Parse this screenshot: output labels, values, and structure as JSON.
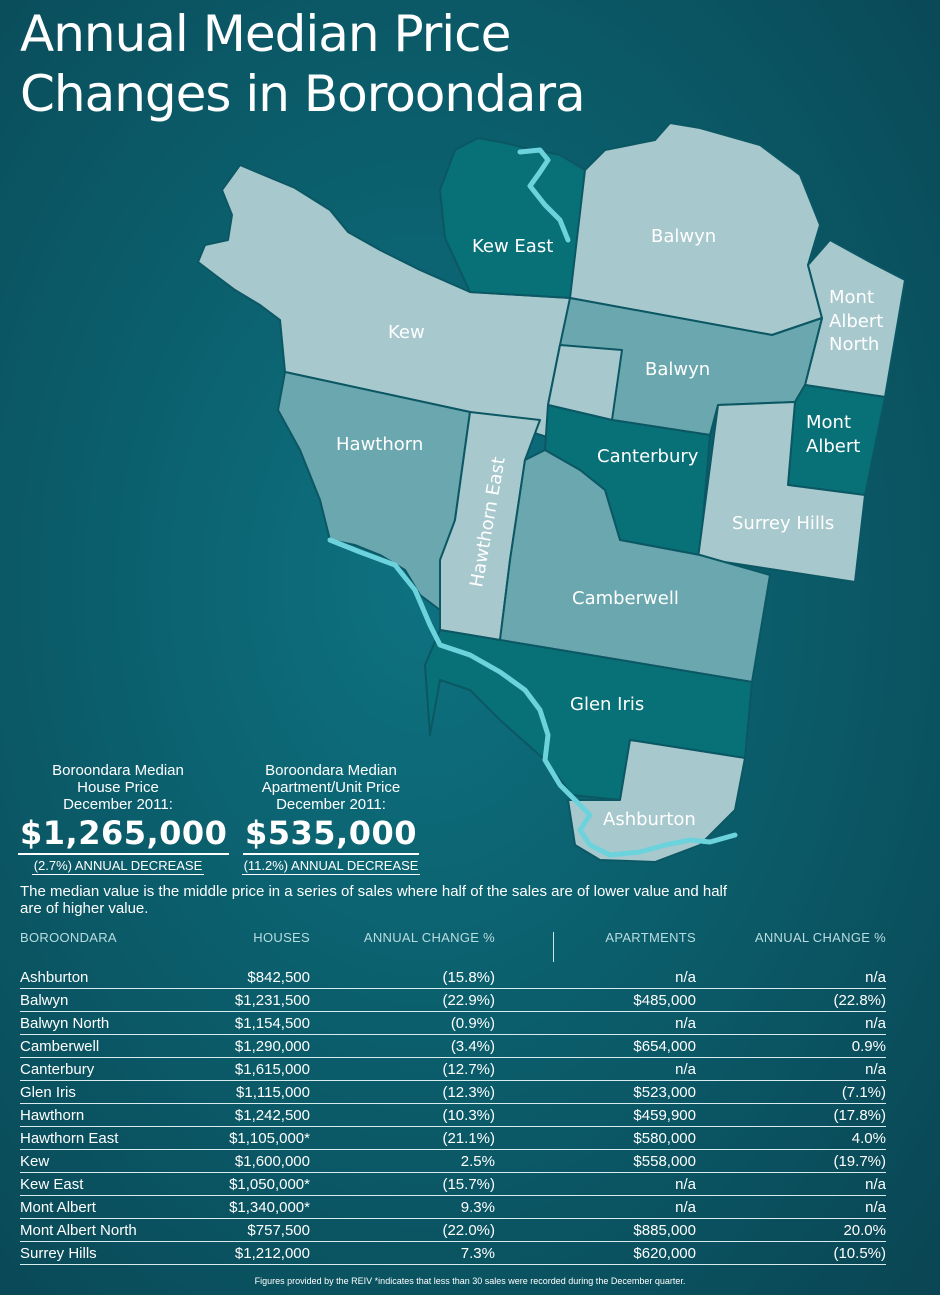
{
  "title": {
    "line1": "Annual Median Price",
    "line2": "Changes in Boroondara"
  },
  "map": {
    "suburbs": [
      "Kew East",
      "Balwyn",
      "Kew",
      "Mont Albert North",
      "Balwyn",
      "Mont Albert",
      "Hawthorn",
      "Hawthorn East",
      "Canterbury",
      "Surrey Hills",
      "Camberwell",
      "Glen Iris",
      "Ashburton"
    ],
    "colors": {
      "light": "#a7c8cd",
      "medium": "#6ba7ae",
      "dark": "#087177",
      "border": "#0b5764",
      "river": "#6cd3dc"
    }
  },
  "house": {
    "label1": "Boroondara Median",
    "label2": "House Price",
    "label3": "December 2011:",
    "price": "$1,265,000",
    "change": "(2.7%) ANNUAL DECREASE"
  },
  "unit": {
    "label1": "Boroondara Median",
    "label2": "Apartment/Unit Price",
    "label3": "December 2011:",
    "price": "$535,000",
    "change": "(11.2%) ANNUAL DECREASE"
  },
  "note": "The median value is the middle price in a series of sales where half of the sales are of lower value and half are of higher value.",
  "table": {
    "headers": [
      "BOROONDARA",
      "HOUSES",
      "ANNUAL CHANGE %",
      "APARTMENTS",
      "ANNUAL CHANGE %"
    ],
    "rows": [
      [
        "Ashburton",
        "$842,500",
        "(15.8%)",
        "n/a",
        "n/a"
      ],
      [
        "Balwyn",
        "$1,231,500",
        "(22.9%)",
        "$485,000",
        "(22.8%)"
      ],
      [
        "Balwyn North",
        "$1,154,500",
        "(0.9%)",
        "n/a",
        "n/a"
      ],
      [
        "Camberwell",
        "$1,290,000",
        "(3.4%)",
        "$654,000",
        "0.9%"
      ],
      [
        "Canterbury",
        "$1,615,000",
        "(12.7%)",
        "n/a",
        "n/a"
      ],
      [
        "Glen Iris",
        "$1,115,000",
        "(12.3%)",
        "$523,000",
        "(7.1%)"
      ],
      [
        "Hawthorn",
        "$1,242,500",
        "(10.3%)",
        "$459,900",
        "(17.8%)"
      ],
      [
        "Hawthorn East",
        "$1,105,000*",
        "(21.1%)",
        "$580,000",
        "4.0%"
      ],
      [
        "Kew",
        "$1,600,000",
        "2.5%",
        "$558,000",
        "(19.7%)"
      ],
      [
        "Kew East",
        "$1,050,000*",
        "(15.7%)",
        "n/a",
        "n/a"
      ],
      [
        "Mont Albert",
        "$1,340,000*",
        "9.3%",
        "n/a",
        "n/a"
      ],
      [
        "Mont Albert North",
        "$757,500",
        "(22.0%)",
        "$885,000",
        "20.0%"
      ],
      [
        "Surrey Hills",
        "$1,212,000",
        "7.3%",
        "$620,000",
        "(10.5%)"
      ]
    ]
  },
  "footnote": "Figures provided by the REIV *indicates that less than 30 sales were recorded during the December quarter."
}
